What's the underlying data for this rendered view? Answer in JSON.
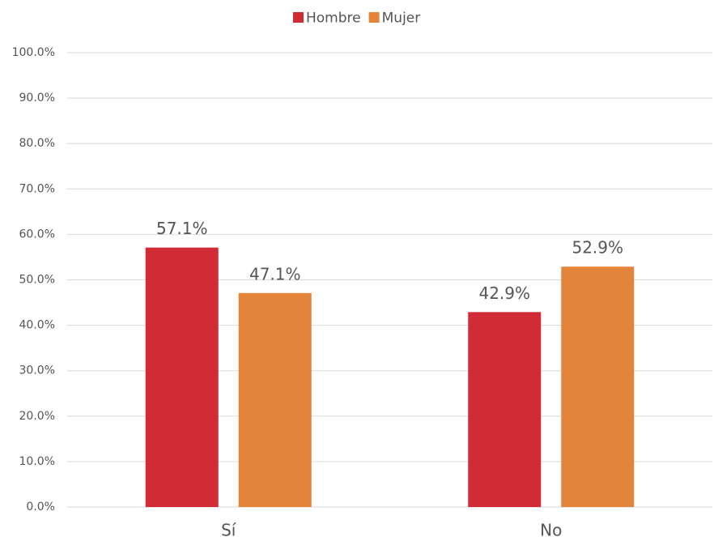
{
  "chart_data": {
    "type": "bar",
    "categories": [
      "Sí",
      "No"
    ],
    "series": [
      {
        "name": "Hombre",
        "color": "#d12b36",
        "values": [
          57.1,
          42.9
        ],
        "value_labels": [
          "57.1%",
          "42.9%"
        ]
      },
      {
        "name": "Mujer",
        "color": "#e3843b",
        "values": [
          47.1,
          52.9
        ],
        "value_labels": [
          "47.1%",
          "52.9%"
        ]
      }
    ],
    "ylim": [
      0,
      100
    ],
    "yticks": [
      {
        "value": 0,
        "label": "0.0%"
      },
      {
        "value": 10,
        "label": "10.0%"
      },
      {
        "value": 20,
        "label": "20.0%"
      },
      {
        "value": 30,
        "label": "30.0%"
      },
      {
        "value": 40,
        "label": "40.0%"
      },
      {
        "value": 50,
        "label": "50.0%"
      },
      {
        "value": 60,
        "label": "60.0%"
      },
      {
        "value": 70,
        "label": "70.0%"
      },
      {
        "value": 80,
        "label": "80.0%"
      },
      {
        "value": 90,
        "label": "90.0%"
      },
      {
        "value": 100,
        "label": "100.0%"
      }
    ],
    "grid": true,
    "legend": "top"
  }
}
